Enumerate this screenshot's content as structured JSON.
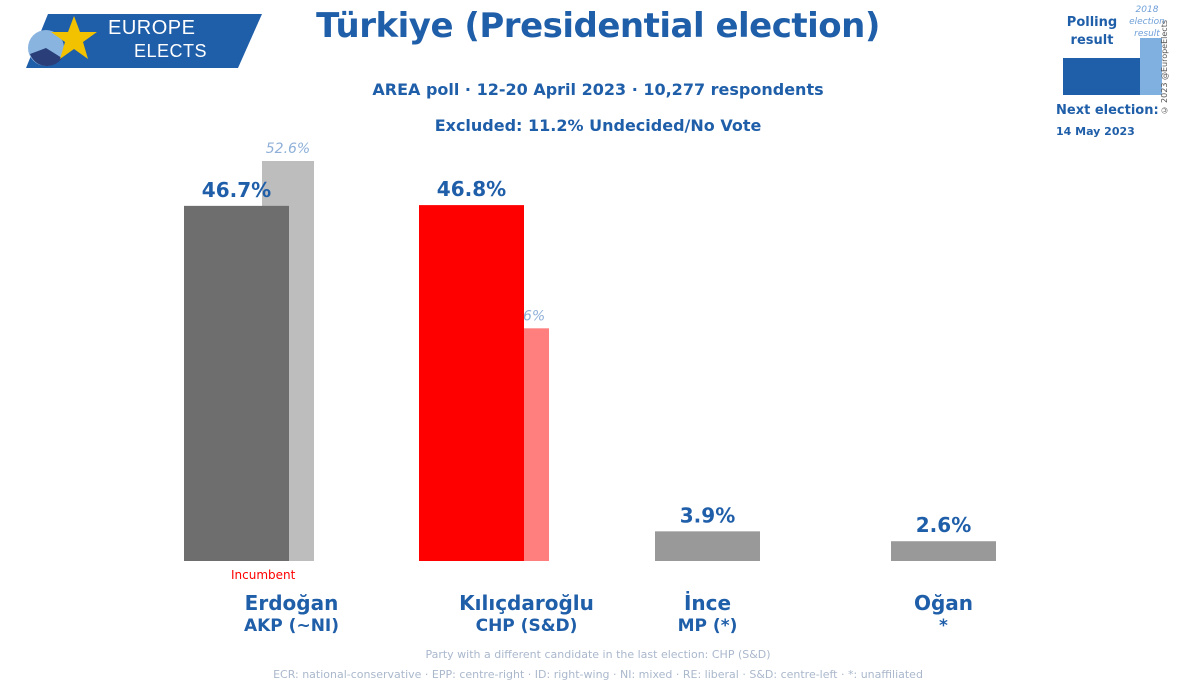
{
  "logo": {
    "line1": "EUROPE",
    "line2": "ELECTS"
  },
  "header": {
    "title": "Türkiye (Presidential election)",
    "subtitle": "AREA poll · 12-20 April 2023 · 10,277 respondents",
    "excluded": "Excluded: 11.2% Undecided/No Vote"
  },
  "legend": {
    "polling": "Polling result",
    "previous": "2018 election result",
    "copyright": "© 2023 @EuropeElects",
    "next_label": "Next election:",
    "next_date": "14 May 2023",
    "poll_color": "#1f5ea8",
    "previous_color": "#7fb0e0"
  },
  "chart_data": {
    "type": "bar",
    "categories": [
      "Erdoğan",
      "Kılıçdaroğlu",
      "İnce",
      "Oğan"
    ],
    "parties": [
      "AKP (~NI)",
      "CHP (S&D)",
      "MP (*)",
      "*"
    ],
    "series": [
      {
        "name": "Polling result",
        "values": [
          46.7,
          46.8,
          3.9,
          2.6
        ],
        "labels": [
          "46.7%",
          "46.8%",
          "3.9%",
          "2.6%"
        ],
        "colors": [
          "#6e6e6e",
          "#ff0000",
          "#999999",
          "#999999"
        ]
      },
      {
        "name": "2018 election result",
        "values": [
          52.6,
          30.6,
          null,
          null
        ],
        "labels": [
          "52.6%",
          "30.6%",
          "",
          ""
        ],
        "colors": [
          "#bdbdbd",
          "#ff7f7f",
          "",
          ""
        ]
      }
    ],
    "ylim": [
      0,
      52.6
    ],
    "incumbent_label": "Incumbent"
  },
  "footer": {
    "note": "Party with a different candidate in the last election: CHP (S&D)",
    "abbreviations": "ECR: national-conservative · EPP: centre-right · ID: right-wing · NI: mixed · RE: liberal · S&D: centre-left · *: unaffiliated"
  }
}
